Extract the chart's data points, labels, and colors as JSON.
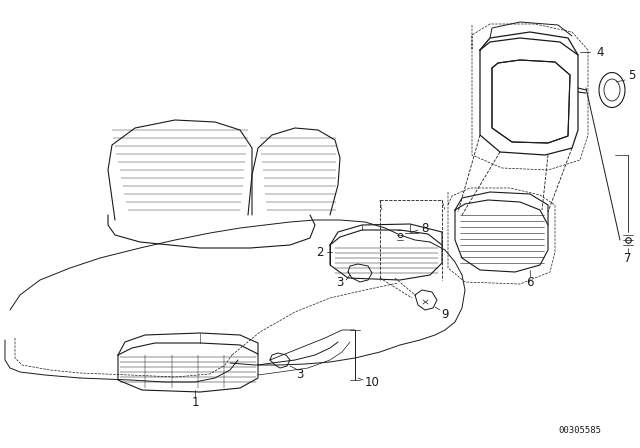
{
  "background_color": "#ffffff",
  "line_color": "#1a1a1a",
  "part_code": "00305585",
  "figsize": [
    6.4,
    4.48
  ],
  "dpi": 100
}
